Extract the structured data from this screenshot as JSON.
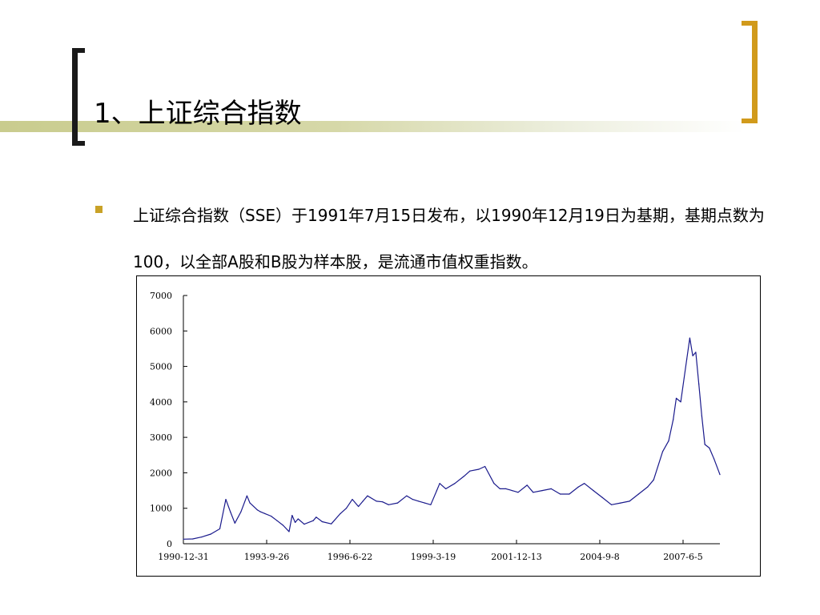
{
  "slide": {
    "title": "1、上证综合指数",
    "body": "上证综合指数（SSE）于1991年7月15日发布，以1990年12月19日为基期，基期点数为100，以全部A股和B股为样本股，是流通市值权重指数。"
  },
  "colors": {
    "bracket_left": "#1a1a1a",
    "bracket_right": "#d19a1b",
    "bullet": "#c9a227",
    "line": "#1a1a8c"
  },
  "chart_data": {
    "type": "line",
    "title": "",
    "xlabel": "",
    "ylabel": "",
    "ylim": [
      0,
      7000
    ],
    "yticks": [
      "0",
      "1000",
      "2000",
      "3000",
      "4000",
      "5000",
      "6000",
      "7000"
    ],
    "xticks": [
      "1990-12-31",
      "1993-9-26",
      "1996-6-22",
      "1999-3-19",
      "2001-12-13",
      "2004-9-8",
      "2007-6-5"
    ],
    "grid": false,
    "x": [
      1990.99,
      1991.3,
      1991.6,
      1991.9,
      1992.2,
      1992.4,
      1992.55,
      1992.7,
      1992.9,
      1993.1,
      1993.2,
      1993.45,
      1993.55,
      1993.7,
      1993.9,
      1994.1,
      1994.3,
      1994.5,
      1994.6,
      1994.7,
      1994.8,
      1995.0,
      1995.3,
      1995.4,
      1995.6,
      1995.9,
      1996.2,
      1996.4,
      1996.6,
      1996.8,
      1996.95,
      1997.1,
      1997.4,
      1997.6,
      1997.8,
      1998.1,
      1998.4,
      1998.6,
      1998.8,
      1999.0,
      1999.2,
      1999.4,
      1999.5,
      1999.7,
      2000.0,
      2000.3,
      2000.5,
      2000.8,
      2001.0,
      2001.3,
      2001.5,
      2001.7,
      2001.9,
      2002.1,
      2002.4,
      2002.6,
      2002.9,
      2003.2,
      2003.5,
      2003.8,
      2004.1,
      2004.3,
      2004.6,
      2004.9,
      2005.2,
      2005.5,
      2005.8,
      2006.1,
      2006.4,
      2006.6,
      2006.9,
      2007.1,
      2007.25,
      2007.35,
      2007.5,
      2007.7,
      2007.8,
      2007.9,
      2008.0,
      2008.1,
      2008.2,
      2008.3,
      2008.45,
      2008.6,
      2008.8
    ],
    "values": [
      128,
      135,
      190,
      270,
      420,
      1250,
      900,
      580,
      900,
      1350,
      1150,
      950,
      900,
      850,
      780,
      650,
      520,
      340,
      800,
      600,
      700,
      550,
      650,
      750,
      620,
      560,
      850,
      1000,
      1250,
      1050,
      1200,
      1350,
      1200,
      1180,
      1100,
      1150,
      1350,
      1250,
      1200,
      1150,
      1100,
      1500,
      1700,
      1550,
      1700,
      1900,
      2050,
      2100,
      2180,
      1700,
      1550,
      1550,
      1500,
      1450,
      1650,
      1450,
      1500,
      1550,
      1400,
      1400,
      1600,
      1700,
      1500,
      1300,
      1100,
      1150,
      1200,
      1400,
      1600,
      1800,
      2600,
      2900,
      3500,
      4100,
      4000,
      5200,
      5800,
      5300,
      5400,
      4500,
      3600,
      2800,
      2700,
      2400,
      1950
    ]
  }
}
